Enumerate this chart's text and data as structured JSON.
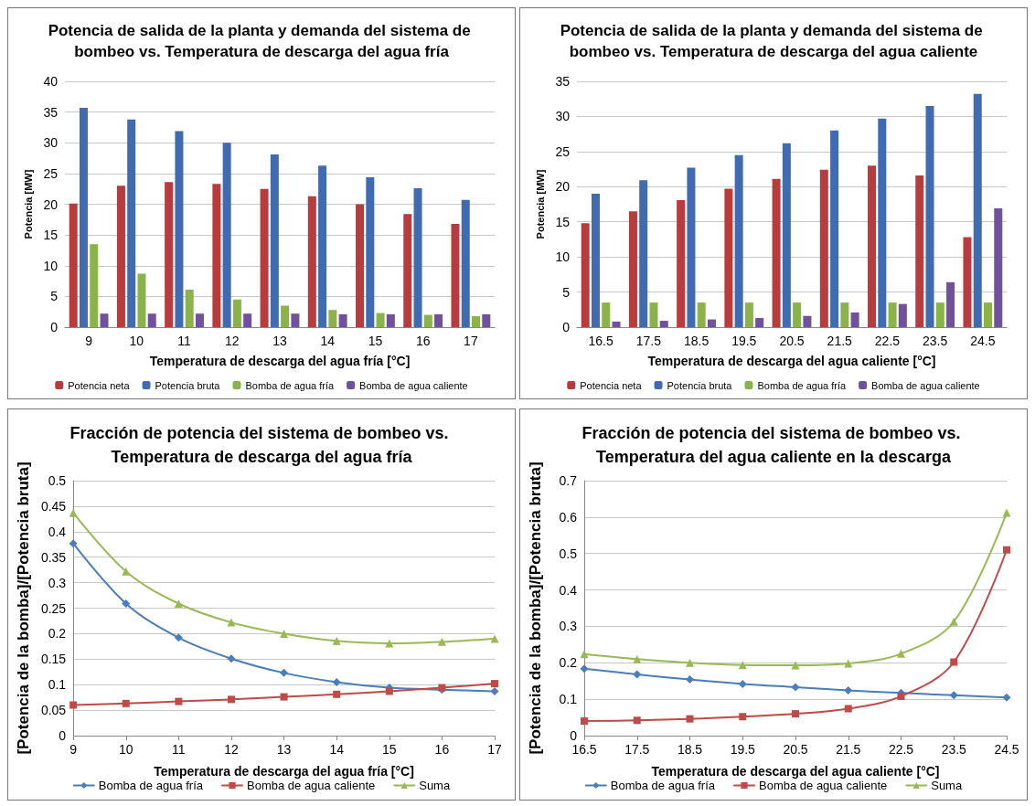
{
  "chart_data": [
    {
      "type": "bar",
      "title": "Potencia de salida de la planta y demanda del sistema de bombeo vs. Temperatura de descarga del agua fría",
      "xlabel": "Temperatura de descarga del agua fría [°C]",
      "ylabel": "Potencia [MW]",
      "categories": [
        "9",
        "10",
        "11",
        "12",
        "13",
        "14",
        "15",
        "16",
        "17"
      ],
      "ylim": [
        0,
        40
      ],
      "yticks": [
        0,
        5,
        10,
        15,
        20,
        25,
        30,
        35,
        40
      ],
      "grid": "y",
      "legend": "bottom",
      "series": [
        {
          "name": "Potencia neta",
          "color": "#b83b3d",
          "values": [
            20.1,
            23,
            23.6,
            23.3,
            22.5,
            21.3,
            20,
            18.4,
            16.8
          ]
        },
        {
          "name": "Potencia bruta",
          "color": "#416bb0",
          "values": [
            35.7,
            33.8,
            31.9,
            30,
            28.1,
            26.3,
            24.4,
            22.6,
            20.7
          ]
        },
        {
          "name": "Bomba de agua fría",
          "color": "#8cb34a",
          "values": [
            13.5,
            8.7,
            6.1,
            4.5,
            3.5,
            2.8,
            2.3,
            2,
            1.8
          ]
        },
        {
          "name": "Bomba de agua caliente",
          "color": "#70529c",
          "values": [
            2.2,
            2.2,
            2.2,
            2.2,
            2.2,
            2.1,
            2.1,
            2.1,
            2.1
          ]
        }
      ]
    },
    {
      "type": "bar",
      "title": "Potencia de salida de la planta y demanda del sistema de bombeo vs. Temperatura de descarga del agua caliente",
      "xlabel": "Temperatura de descarga del agua caliente [°C]",
      "ylabel": "Potencia [MW]",
      "categories": [
        "16.5",
        "17.5",
        "18.5",
        "19.5",
        "20.5",
        "21.5",
        "22.5",
        "23.5",
        "24.5"
      ],
      "ylim": [
        0,
        35
      ],
      "yticks": [
        0,
        5,
        10,
        15,
        20,
        25,
        30,
        35
      ],
      "grid": "y",
      "legend": "bottom",
      "series": [
        {
          "name": "Potencia neta",
          "color": "#b83b3d",
          "values": [
            14.8,
            16.5,
            18.1,
            19.7,
            21.1,
            22.4,
            23,
            21.6,
            12.8
          ]
        },
        {
          "name": "Potencia bruta",
          "color": "#416bb0",
          "values": [
            19,
            20.9,
            22.7,
            24.5,
            26.2,
            28,
            29.7,
            31.5,
            33.2
          ]
        },
        {
          "name": "Bomba de agua fría",
          "color": "#8cb34a",
          "values": [
            3.5,
            3.5,
            3.5,
            3.5,
            3.5,
            3.5,
            3.5,
            3.5,
            3.5
          ]
        },
        {
          "name": "Bomba de agua caliente",
          "color": "#70529c",
          "values": [
            0.8,
            0.9,
            1.1,
            1.3,
            1.6,
            2.1,
            3.3,
            6.4,
            16.9
          ]
        }
      ]
    },
    {
      "type": "line",
      "title": "Fracción de potencia del sistema de bombeo vs. Temperatura de descarga del agua fría",
      "xlabel": "Temperatura de descarga del agua fría [°C]",
      "ylabel": "[Potencia de la bomba]/[Potencia bruta]",
      "categories": [
        "9",
        "10",
        "11",
        "12",
        "13",
        "14",
        "15",
        "16",
        "17"
      ],
      "ylim": [
        0,
        0.5
      ],
      "yticks": [
        0,
        0.05,
        0.1,
        0.15,
        0.2,
        0.25,
        0.3,
        0.35,
        0.4,
        0.45,
        0.5
      ],
      "grid": "y",
      "legend": "bottom",
      "series": [
        {
          "name": "Bomba de agua fría",
          "color": "#4a7ebb",
          "marker": "diamond",
          "values": [
            0.377,
            0.259,
            0.192,
            0.151,
            0.123,
            0.105,
            0.094,
            0.09,
            0.087
          ]
        },
        {
          "name": "Bomba de agua caliente",
          "color": "#be4b48",
          "marker": "square",
          "values": [
            0.06,
            0.063,
            0.067,
            0.071,
            0.076,
            0.081,
            0.087,
            0.094,
            0.102
          ]
        },
        {
          "name": "Suma",
          "color": "#98b954",
          "marker": "triangle",
          "values": [
            0.437,
            0.322,
            0.259,
            0.222,
            0.2,
            0.186,
            0.181,
            0.184,
            0.19
          ]
        }
      ]
    },
    {
      "type": "line",
      "title": "Fracción de potencia del sistema de bombeo vs. Temperatura del agua caliente en la descarga",
      "xlabel": "Temperatura de descarga del agua caliente [°C]",
      "ylabel": "[Potencia de la bomba]/[Potencia bruta]",
      "categories": [
        "16.5",
        "17.5",
        "18.5",
        "19.5",
        "20.5",
        "21.5",
        "22.5",
        "23.5",
        "24.5"
      ],
      "ylim": [
        0,
        0.7
      ],
      "yticks": [
        0,
        0.1,
        0.2,
        0.3,
        0.4,
        0.5,
        0.6,
        0.7
      ],
      "grid": "y",
      "legend": "bottom",
      "series": [
        {
          "name": "Bomba de agua fría",
          "color": "#4a7ebb",
          "marker": "diamond",
          "values": [
            0.184,
            0.168,
            0.154,
            0.142,
            0.133,
            0.124,
            0.117,
            0.111,
            0.105
          ]
        },
        {
          "name": "Bomba de agua caliente",
          "color": "#be4b48",
          "marker": "square",
          "values": [
            0.04,
            0.042,
            0.046,
            0.052,
            0.06,
            0.074,
            0.108,
            0.202,
            0.51
          ]
        },
        {
          "name": "Suma",
          "color": "#98b954",
          "marker": "triangle",
          "values": [
            0.224,
            0.21,
            0.2,
            0.194,
            0.193,
            0.198,
            0.225,
            0.313,
            0.612
          ]
        }
      ]
    }
  ]
}
